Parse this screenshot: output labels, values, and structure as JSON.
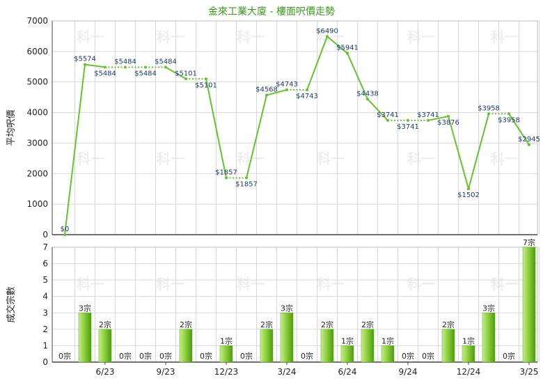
{
  "title": "金來工業大廈 - 樓面呎價走勢",
  "watermark": "科一",
  "colors": {
    "line": "#66c22a",
    "bar_light": "#c8ec8a",
    "bar_dark": "#4e9a12",
    "grid": "#d8d8d8",
    "label": "#1d3a6e"
  },
  "chart_data": [
    {
      "type": "line",
      "ylabel": "平均呎價",
      "ylim": [
        0,
        7000
      ],
      "yticks": [
        0,
        1000,
        2000,
        3000,
        4000,
        5000,
        6000,
        7000
      ],
      "grid": true,
      "series": [
        {
          "values": [
            0,
            5574,
            5484,
            5484,
            5484,
            5484,
            5101,
            5101,
            1857,
            1857,
            4568,
            4743,
            4743,
            6490,
            5941,
            4438,
            3741,
            3741,
            3741,
            3876,
            1502,
            3958,
            3958,
            2945
          ],
          "dotted": [
            false,
            false,
            true,
            true,
            true,
            false,
            true,
            false,
            true,
            false,
            false,
            true,
            false,
            false,
            false,
            false,
            true,
            true,
            false,
            false,
            false,
            true,
            false,
            false
          ]
        }
      ],
      "point_labels": [
        "$0",
        "$5574",
        "$5484",
        "$5484",
        "$5484",
        "$5484",
        "$5101",
        "$5101",
        "$1857",
        "$1857",
        "$4568",
        "$4743",
        "$4743",
        "$6490",
        "$5941",
        "$4438",
        "$3741",
        "$3741",
        "$3741",
        "$3876",
        "$1502",
        "$3958",
        "$3958",
        "$2945"
      ]
    },
    {
      "type": "bar",
      "ylabel": "成交宗數",
      "ylim": [
        0,
        7
      ],
      "yticks": [
        0,
        1,
        2,
        3,
        4,
        5,
        6,
        7
      ],
      "grid": true,
      "x_tick_labels": [
        "6/23",
        "9/23",
        "12/23",
        "3/24",
        "6/24",
        "9/24",
        "12/24",
        "3/25"
      ],
      "values": [
        0,
        3,
        2,
        0,
        0,
        0,
        2,
        0,
        1,
        0,
        2,
        3,
        0,
        2,
        1,
        2,
        1,
        0,
        0,
        2,
        1,
        3,
        0,
        7
      ],
      "value_labels": [
        "0宗",
        "3宗",
        "2宗",
        "0宗",
        "0宗",
        "0宗",
        "2宗",
        "0宗",
        "1宗",
        "0宗",
        "2宗",
        "3宗",
        "0宗",
        "2宗",
        "1宗",
        "2宗",
        "1宗",
        "0宗",
        "0宗",
        "2宗",
        "1宗",
        "3宗",
        "0宗",
        "7宗"
      ]
    }
  ]
}
